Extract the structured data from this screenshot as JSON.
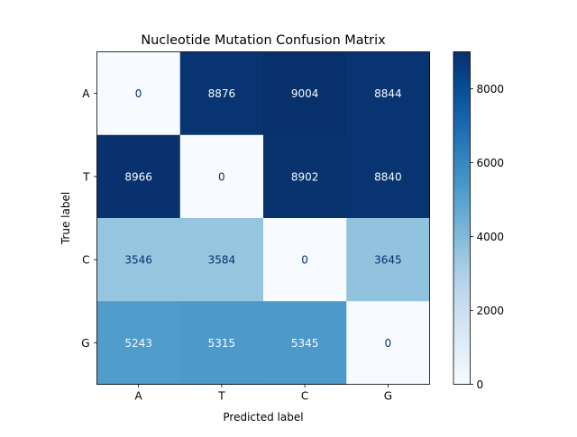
{
  "chart_data": {
    "type": "heatmap",
    "title": "Nucleotide Mutation Confusion Matrix",
    "xlabel": "Predicted label",
    "ylabel": "True label",
    "x_categories": [
      "A",
      "T",
      "C",
      "G"
    ],
    "y_categories": [
      "A",
      "T",
      "C",
      "G"
    ],
    "values": [
      [
        0,
        8876,
        9004,
        8844
      ],
      [
        8966,
        0,
        8902,
        8840
      ],
      [
        3546,
        3584,
        0,
        3645
      ],
      [
        5243,
        5315,
        5345,
        0
      ]
    ],
    "colormap": "Blues",
    "colorbar": {
      "min": 0,
      "max": 9004,
      "ticks": [
        0,
        2000,
        4000,
        6000,
        8000
      ]
    },
    "colors": {
      "low": "#f7fbff",
      "high": "#08306b",
      "text_light": "#f7fbff",
      "text_dark": "#08306b"
    }
  }
}
